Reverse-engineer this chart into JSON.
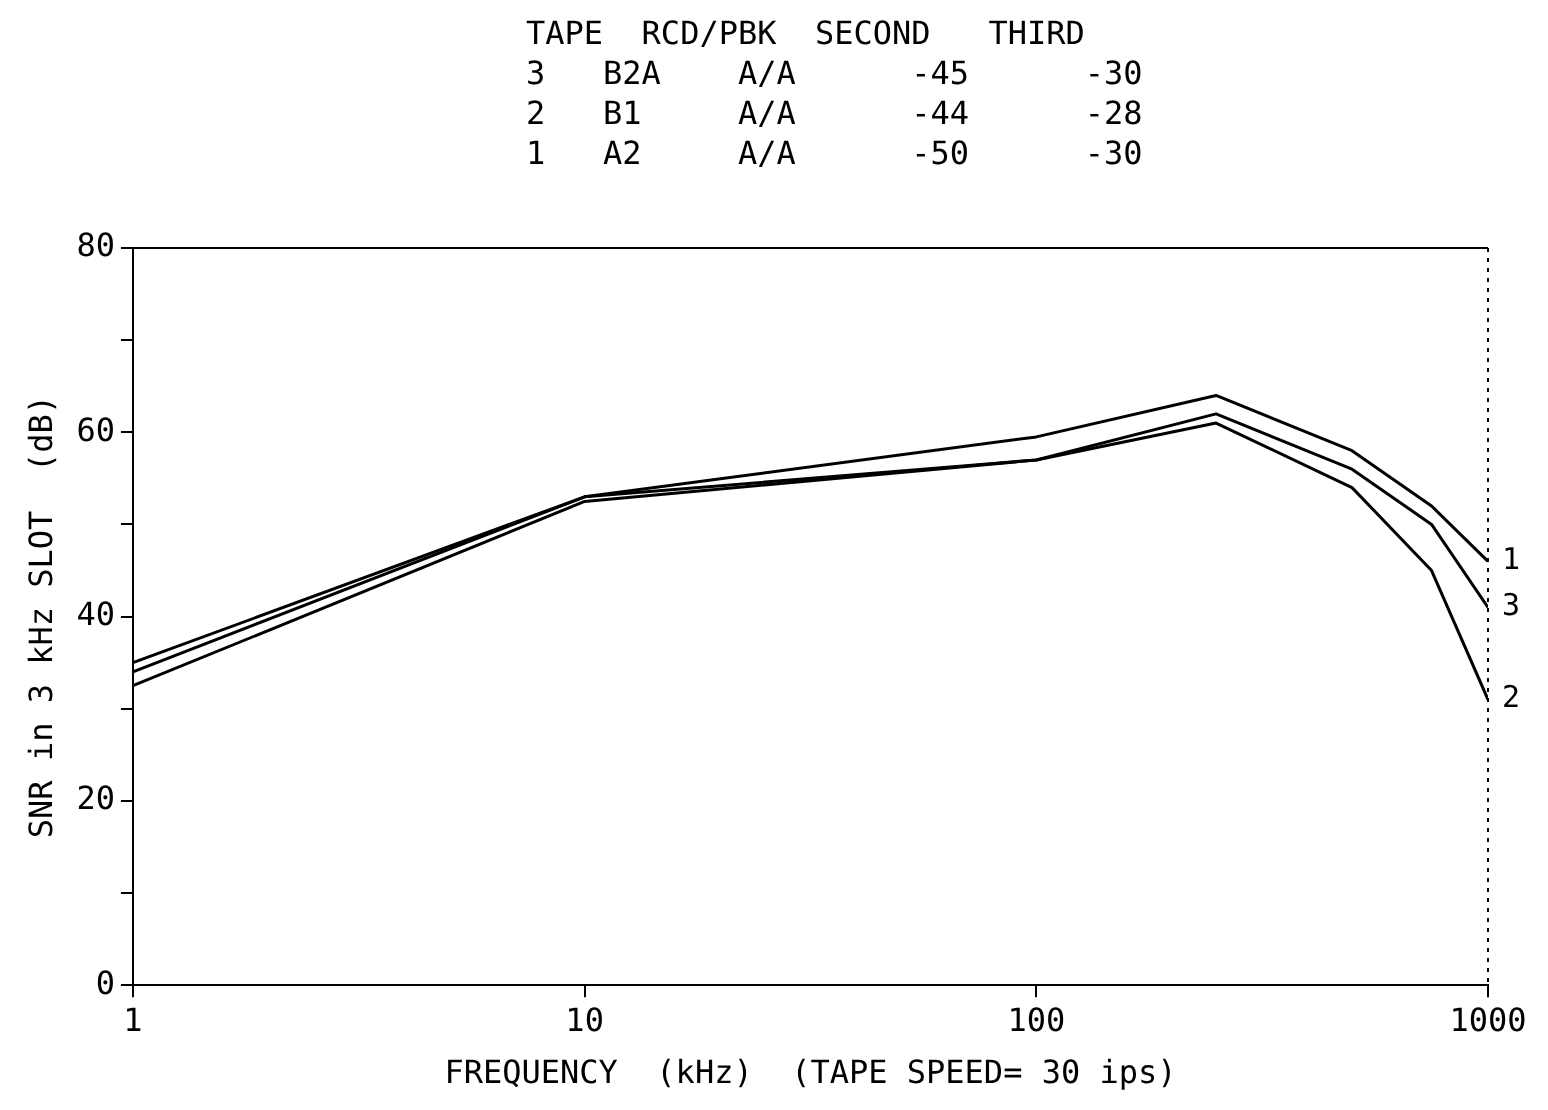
{
  "chart_data": {
    "type": "line",
    "xlabel": "FREQUENCY  (kHz)  (TAPE SPEED= 30 ips)",
    "ylabel": "SNR in 3 kHz SLOT  (dB)",
    "annotations": [
      "TAPE  RCD/PBK  SECOND   THIRD",
      "3   B2A    A/A      -45      -30",
      "2   B1     A/A      -44      -28",
      "1   A2     A/A      -50      -30"
    ],
    "x": [
      1,
      10,
      100,
      250,
      500,
      750,
      1000
    ],
    "series": [
      {
        "name": "3",
        "color": "#000000",
        "values": [
          34,
          53,
          57,
          62,
          56,
          50,
          41
        ]
      },
      {
        "name": "2",
        "color": "#000000",
        "values": [
          32.5,
          52.5,
          57,
          61,
          54,
          45,
          31
        ]
      },
      {
        "name": "1",
        "color": "#000000",
        "values": [
          35,
          53,
          59.5,
          64,
          58,
          52,
          46
        ]
      }
    ],
    "log": "x",
    "xlim": [
      1,
      1000
    ],
    "xticks": [
      1,
      10,
      100,
      1000
    ],
    "ylim": [
      0,
      80
    ],
    "yticks": [
      0,
      {
        "value": 10,
        "label": null
      },
      20,
      {
        "value": 30,
        "label": null
      },
      40,
      {
        "value": 50,
        "label": null
      },
      60,
      {
        "value": 70,
        "label": null
      },
      80
    ],
    "grid": false,
    "legend": false,
    "marker": "none",
    "line_style": "solid"
  }
}
